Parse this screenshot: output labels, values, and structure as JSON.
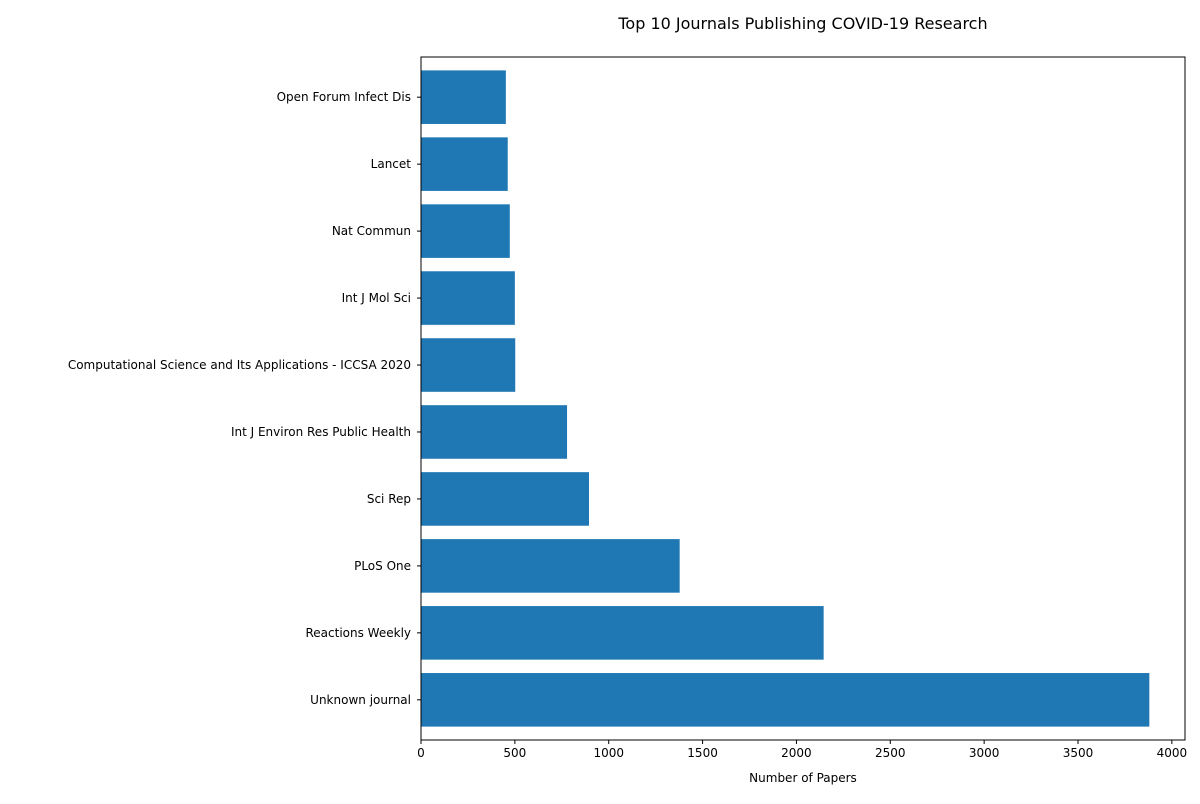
{
  "chart_data": {
    "type": "bar",
    "orientation": "horizontal",
    "title": "Top 10 Journals Publishing COVID-19 Research",
    "xlabel": "Number of Papers",
    "ylabel": "",
    "xlim": [
      0,
      4070
    ],
    "xticks": [
      0,
      500,
      1000,
      1500,
      2000,
      2500,
      3000,
      3500,
      4000
    ],
    "xtick_labels": [
      "0",
      "500",
      "1000",
      "1500",
      "2000",
      "2500",
      "3000",
      "3500",
      "4000"
    ],
    "grid": false,
    "legend": "none",
    "bar_color": "#1f77b4",
    "categories": [
      "Unknown journal",
      "Reactions Weekly",
      "PLoS One",
      "Sci Rep",
      "Int J Environ Res Public Health",
      "Computational Science and Its Applications - ICCSA 2020",
      "Int J Mol Sci",
      "Nat Commun",
      "Lancet",
      "Open Forum Infect Dis"
    ],
    "values": [
      3880,
      2145,
      1378,
      895,
      778,
      502,
      500,
      473,
      462,
      452
    ]
  }
}
